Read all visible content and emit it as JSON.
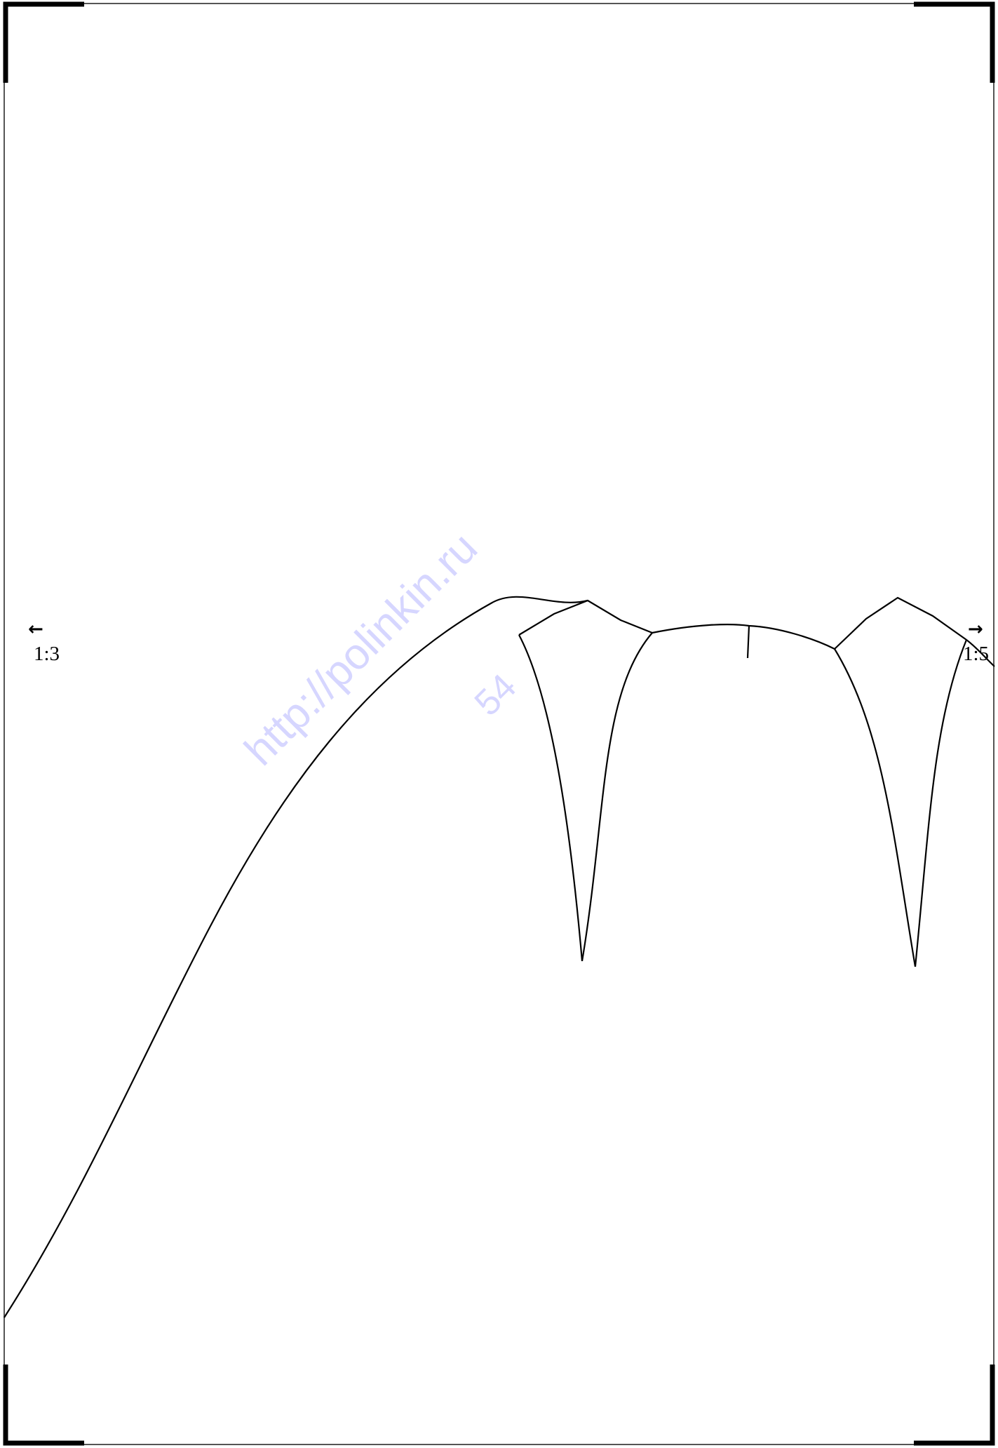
{
  "markers": {
    "left_label": "1:3",
    "right_label": "1:5",
    "left_arrow_icon": "arrow-left-icon",
    "right_arrow_icon": "arrow-right-icon"
  },
  "watermark": {
    "url": "http://polinkin.ru",
    "code": "54"
  },
  "colors": {
    "line": "#000000",
    "watermark": "#4646ff"
  }
}
